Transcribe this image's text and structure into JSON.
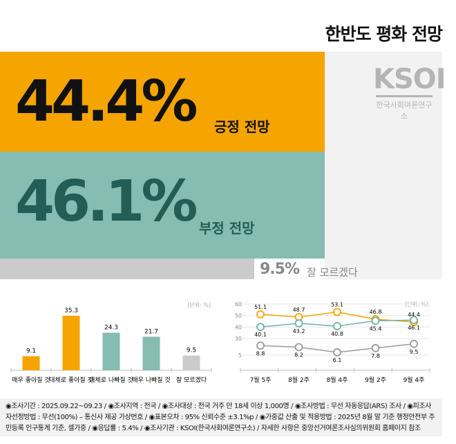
{
  "title": "한반도 평화 전망",
  "summary": {
    "positive": {
      "value": "44.4%",
      "label": "긍정 전망",
      "color": "#f5a400"
    },
    "negative": {
      "value": "46.1%",
      "label": "부정 전망",
      "color": "#86bcb2"
    },
    "unknown": {
      "value": "9.5%",
      "label": "잘 모르겠다",
      "color": "#cbcbcb"
    }
  },
  "logo": {
    "name": "KSOI",
    "subtitle": "한국사회여론연구소"
  },
  "chart_data": [
    {
      "type": "bar",
      "unit_label": "[단위: %]",
      "categories": [
        "매우 좋아질 것",
        "대체로 좋아질 것",
        "대체로 나빠질 것",
        "매우 나빠질 것",
        "잘 모르겠다"
      ],
      "values": [
        9.1,
        35.3,
        24.3,
        21.7,
        9.5
      ],
      "colors": [
        "#f5a400",
        "#f5a400",
        "#86bcb2",
        "#86bcb2",
        "#cbcbcb"
      ]
    },
    {
      "type": "line",
      "unit_label": "[단위: %]",
      "categories": [
        "7월 5주",
        "8월 2주",
        "8월 4주",
        "9월 2주",
        "9월 4주"
      ],
      "yticks": [
        60,
        50,
        40,
        30,
        5
      ],
      "axis_break": true,
      "grid": true,
      "series": [
        {
          "values": [
            51.1,
            48.7,
            53.1,
            46.8,
            44.4
          ],
          "color": "#f5a400"
        },
        {
          "values": [
            40.1,
            43.2,
            40.8,
            45.4,
            46.1
          ],
          "color": "#6fb0a4"
        },
        {
          "values": [
            8.8,
            8.2,
            6.1,
            7.8,
            9.5
          ],
          "color": "#999999"
        }
      ]
    }
  ],
  "footer": "◉조사기간 : 2025.09.22~09.23 / ◉조사지역 : 전국 / ◉조사대상 : 전국 거주 만 18세 이상 1,000명 / ◉조사방법 : 무선 자동응답(ARS) 조사 / ◉피조사자선정방법 : 무선(100%) – 통신사 제공 가상번호 / ◉표본오차 : 95% 신뢰수준 ±3.1%p / ◉가중값 산출 및 적용방법 : 2025년 8월 말 기준 행정안전부 주민등록 인구통계 기준, 셀가중 / ◉응답률 : 5.4% / ◉조사기관 : KSOI(한국사회여론연구소) / 자세한 사항은 중앙선거여론조사심의위원회 홈페이지 참조"
}
